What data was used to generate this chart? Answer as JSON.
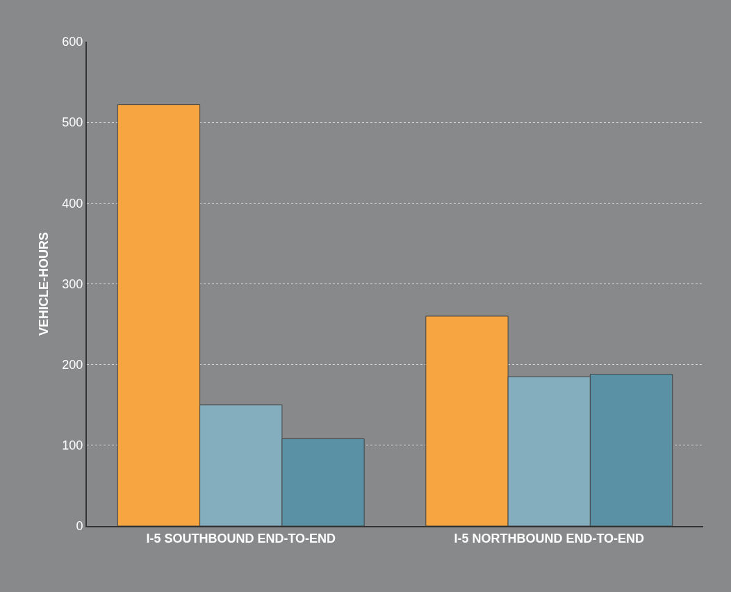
{
  "chart_data": {
    "type": "bar",
    "ylabel": "VEHICLE-HOURS",
    "categories": [
      "I-5 SOUTHBOUND END-TO-END",
      "I-5 NORTHBOUND END-TO-END"
    ],
    "series": [
      {
        "color": "#f7a541",
        "values": [
          522,
          260
        ]
      },
      {
        "color": "#84aebe",
        "values": [
          150,
          185
        ]
      },
      {
        "color": "#5a91a5",
        "values": [
          108,
          188
        ]
      }
    ],
    "ylim": [
      0,
      600
    ],
    "yticks": [
      0,
      100,
      200,
      300,
      400,
      500,
      600
    ],
    "grid": "y"
  }
}
